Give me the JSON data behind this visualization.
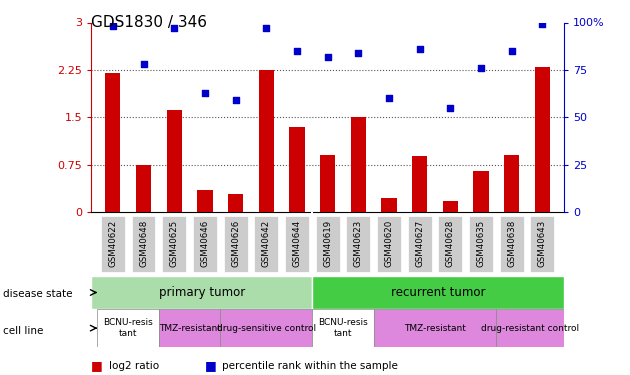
{
  "title": "GDS1830 / 346",
  "samples": [
    "GSM40622",
    "GSM40648",
    "GSM40625",
    "GSM40646",
    "GSM40626",
    "GSM40642",
    "GSM40644",
    "GSM40619",
    "GSM40623",
    "GSM40620",
    "GSM40627",
    "GSM40628",
    "GSM40635",
    "GSM40638",
    "GSM40643"
  ],
  "log2_ratio": [
    2.2,
    0.75,
    1.62,
    0.35,
    0.28,
    2.25,
    1.35,
    0.9,
    1.5,
    0.22,
    0.88,
    0.18,
    0.65,
    0.9,
    2.3
  ],
  "percentile_rank": [
    98,
    78,
    97,
    63,
    59,
    97,
    85,
    82,
    84,
    60,
    86,
    55,
    76,
    85,
    99
  ],
  "bar_color": "#cc0000",
  "dot_color": "#0000cc",
  "ylim_left": [
    0,
    3
  ],
  "ylim_right": [
    0,
    100
  ],
  "yticks_left": [
    0,
    0.75,
    1.5,
    2.25,
    3
  ],
  "yticks_right": [
    0,
    25,
    50,
    75,
    100
  ],
  "left_axis_color": "#cc0000",
  "right_axis_color": "#0000cc",
  "grid_color": "#555555",
  "tick_label_bg": "#cccccc",
  "disease_primary_color": "#aaddaa",
  "disease_recurrent_color": "#44cc44",
  "cell_white_color": "#ffffff",
  "cell_pink_color": "#dd88dd",
  "label_font_size": 7.5,
  "bar_width": 0.5,
  "dot_size": 22
}
